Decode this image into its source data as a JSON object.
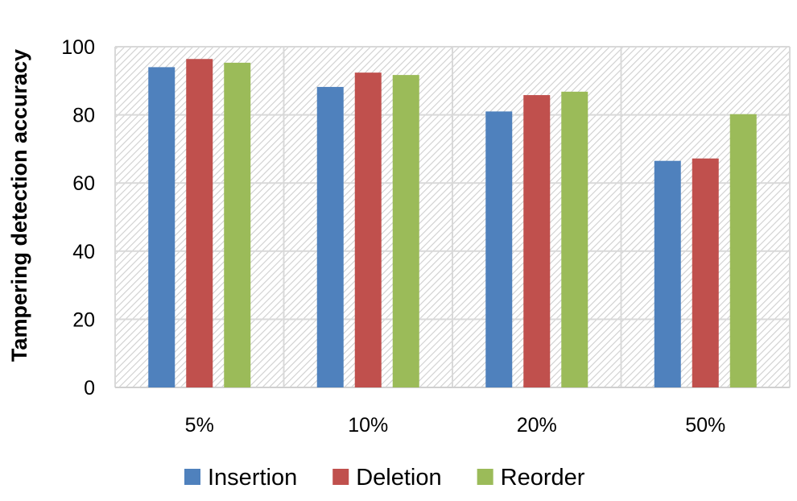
{
  "chart_data": {
    "type": "bar",
    "title": "",
    "xlabel": "",
    "ylabel": "Tampering detection accuracy",
    "ylim": [
      0,
      100
    ],
    "yticks": [
      0,
      20,
      40,
      60,
      80,
      100
    ],
    "categories": [
      "5%",
      "10%",
      "20%",
      "50%"
    ],
    "series": [
      {
        "name": "Insertion",
        "color": "#4F81BD",
        "values": [
          94,
          88.2,
          81,
          66.5
        ]
      },
      {
        "name": "Deletion",
        "color": "#C0504D",
        "values": [
          96.4,
          92.4,
          85.8,
          67.2
        ]
      },
      {
        "name": "Reorder",
        "color": "#9BBB59",
        "values": [
          95.3,
          91.7,
          86.8,
          80.2
        ]
      }
    ],
    "grid": true,
    "plot_background": "hatched light gray",
    "legend_position": "bottom"
  }
}
